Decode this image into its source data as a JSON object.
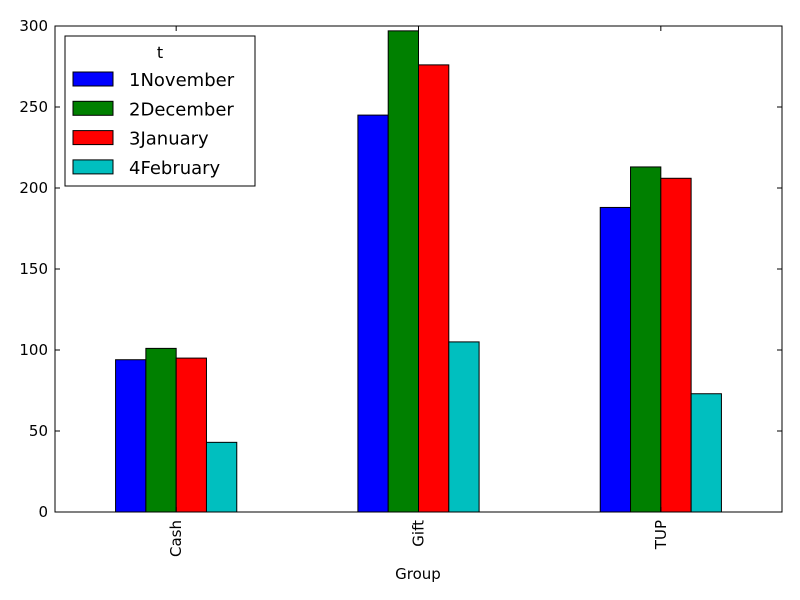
{
  "chart_data": {
    "type": "bar",
    "categories": [
      "Cash",
      "Gift",
      "TUP"
    ],
    "series": [
      {
        "name": "1November",
        "color": "#0000ff",
        "values": [
          94,
          245,
          188
        ]
      },
      {
        "name": "2December",
        "color": "#008000",
        "values": [
          101,
          297,
          213
        ]
      },
      {
        "name": "3January",
        "color": "#ff0000",
        "values": [
          95,
          276,
          206
        ]
      },
      {
        "name": "4February",
        "color": "#00bfbf",
        "values": [
          43,
          105,
          73
        ]
      }
    ],
    "xlabel": "Group",
    "ylabel": "",
    "ylim": [
      0,
      300
    ],
    "yticks": [
      0,
      50,
      100,
      150,
      200,
      250,
      300
    ],
    "legend": {
      "title": "t",
      "placement": "top-left"
    },
    "grid": false
  }
}
